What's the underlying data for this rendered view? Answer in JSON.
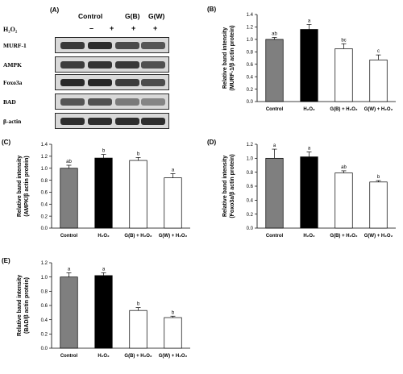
{
  "blot": {
    "panel_label": "(A)",
    "headers": [
      "Control",
      "G(B)",
      "G(W)"
    ],
    "treatment_label": "H₂O₂",
    "signs": [
      "–",
      "+",
      "+",
      "+"
    ],
    "rows": [
      "MURF-1",
      "AMPK",
      "Foxo3a",
      "BAD",
      "β-actin"
    ]
  },
  "chart_data": [
    {
      "panel": "(B)",
      "type": "bar",
      "categories": [
        "Control",
        "H₂O₂",
        "G(B) + H₂O₂",
        "G(W) + H₂O₂"
      ],
      "values": [
        1.0,
        1.16,
        0.85,
        0.67
      ],
      "errors": [
        0.03,
        0.08,
        0.08,
        0.08
      ],
      "letters": [
        "ab",
        "a",
        "bc",
        "c"
      ],
      "ylabel": "Relative band intensity\n(MURF-1/β actin protein)",
      "ylim": [
        0,
        1.4
      ],
      "yticks": [
        "0.0",
        "0.2",
        "0.4",
        "0.6",
        "0.8",
        "1.0",
        "1.2",
        "1.4"
      ]
    },
    {
      "panel": "(C)",
      "type": "bar",
      "categories": [
        "Control",
        "H₂O₂",
        "G(B) + H₂O₂",
        "G(W) + H₂O₂"
      ],
      "values": [
        1.0,
        1.17,
        1.13,
        0.84
      ],
      "errors": [
        0.05,
        0.06,
        0.05,
        0.07
      ],
      "letters": [
        "ab",
        "b",
        "b",
        "a"
      ],
      "ylabel": "Relative band intensity\n(AMPK/β actin protein)",
      "ylim": [
        0,
        1.4
      ],
      "yticks": [
        "0.0",
        "0.2",
        "0.4",
        "0.6",
        "0.8",
        "1.0",
        "1.2",
        "1.4"
      ]
    },
    {
      "panel": "(D)",
      "type": "bar",
      "categories": [
        "Control",
        "H₂O₂",
        "G(B) + H₂O₂",
        "G(W) + H₂O₂"
      ],
      "values": [
        1.0,
        1.02,
        0.79,
        0.66
      ],
      "errors": [
        0.13,
        0.07,
        0.03,
        0.02
      ],
      "letters": [
        "a",
        "a",
        "ab",
        "b"
      ],
      "ylabel": "Relative band intensity\n(Foxo3a/β actin protein)",
      "ylim": [
        0,
        1.2
      ],
      "yticks": [
        "0.0",
        "0.2",
        "0.4",
        "0.6",
        "0.8",
        "1.0",
        "1.2"
      ]
    },
    {
      "panel": "(E)",
      "type": "bar",
      "categories": [
        "Control",
        "H₂O₂",
        "G(B) + H₂O₂",
        "G(W) + H₂O₂"
      ],
      "values": [
        1.0,
        1.02,
        0.53,
        0.43
      ],
      "errors": [
        0.06,
        0.04,
        0.04,
        0.02
      ],
      "letters": [
        "a",
        "a",
        "b",
        "b"
      ],
      "ylabel": "Relative band intensity\n(BAD/β actin protein)",
      "ylim": [
        0,
        1.2
      ],
      "yticks": [
        "0.0",
        "0.2",
        "0.4",
        "0.6",
        "0.8",
        "1.0",
        "1.2"
      ]
    }
  ],
  "bar_colors": [
    "#7f7f7f",
    "#000000",
    "#ffffff",
    "#ffffff"
  ]
}
